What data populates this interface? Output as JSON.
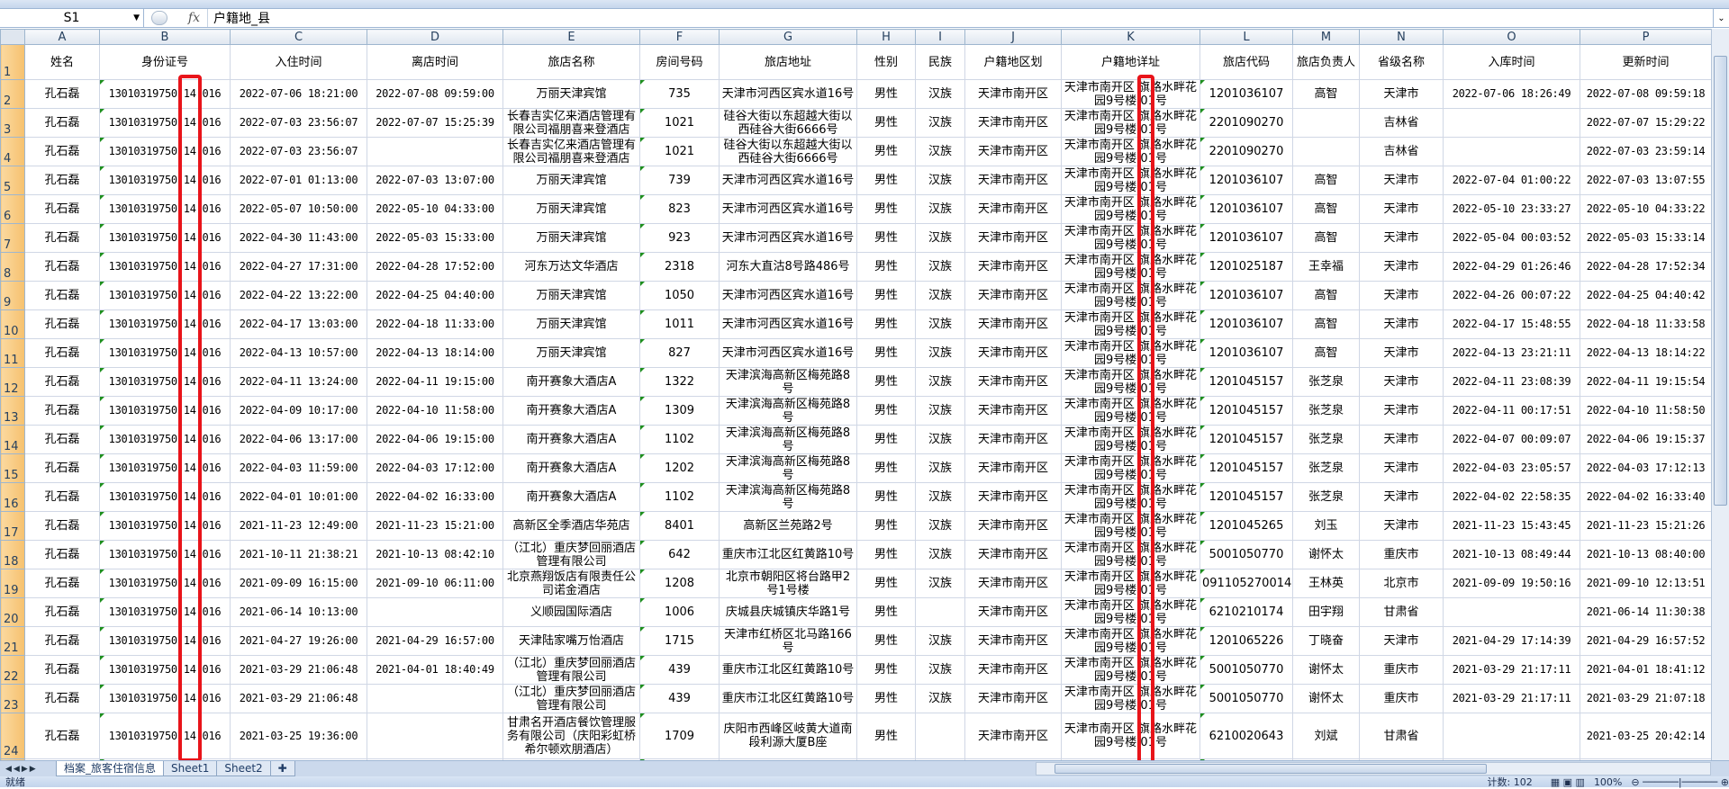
{
  "formula_bar": {
    "name_box": "S1",
    "fx_icon": "fx",
    "value": "户籍地_县"
  },
  "columns": [
    "A",
    "B",
    "C",
    "D",
    "E",
    "F",
    "G",
    "H",
    "I",
    "J",
    "K",
    "L",
    "M",
    "N",
    "O",
    "P"
  ],
  "headers": [
    "姓名",
    "身份证号",
    "入住时间",
    "离店时间",
    "旅店名称",
    "房间号码",
    "旅店地址",
    "性别",
    "民族",
    "户籍地区划",
    "户籍地详址",
    "旅店代码",
    "旅店负责人",
    "省级名称",
    "入库时间",
    "更新时间"
  ],
  "rows": [
    [
      "孔石磊",
      "13010319750 14 016",
      "2022-07-06 18:21:00",
      "2022-07-08 09:59:00",
      "万丽天津宾馆",
      "735",
      "天津市河西区宾水道16号",
      "男性",
      "汉族",
      "天津市南开区",
      "天津市南开区 旗路水畔花园9号楼 01号",
      "1201036107",
      "高智",
      "天津市",
      "2022-07-06 18:26:49",
      "2022-07-08 09:59:18"
    ],
    [
      "孔石磊",
      "13010319750 14 016",
      "2022-07-03 23:56:07",
      "2022-07-07 15:25:39",
      "长春吉实亿来酒店管理有限公司福朋喜来登酒店",
      "1021",
      "硅谷大街以东超越大街以西硅谷大街6666号",
      "男性",
      "汉族",
      "天津市南开区",
      "天津市南开区 旗路水畔花园9号楼 01号",
      "2201090270",
      "",
      "吉林省",
      "",
      "2022-07-07 15:29:22"
    ],
    [
      "孔石磊",
      "13010319750 14 016",
      "2022-07-03 23:56:07",
      "",
      "长春吉实亿来酒店管理有限公司福朋喜来登酒店",
      "1021",
      "硅谷大街以东超越大街以西硅谷大街6666号",
      "男性",
      "汉族",
      "天津市南开区",
      "天津市南开区 旗路水畔花园9号楼 01号",
      "2201090270",
      "",
      "吉林省",
      "",
      "2022-07-03 23:59:14"
    ],
    [
      "孔石磊",
      "13010319750 14 016",
      "2022-07-01 01:13:00",
      "2022-07-03 13:07:00",
      "万丽天津宾馆",
      "739",
      "天津市河西区宾水道16号",
      "男性",
      "汉族",
      "天津市南开区",
      "天津市南开区 旗路水畔花园9号楼 01号",
      "1201036107",
      "高智",
      "天津市",
      "2022-07-04 01:00:22",
      "2022-07-03 13:07:55"
    ],
    [
      "孔石磊",
      "13010319750 14 016",
      "2022-05-07 10:50:00",
      "2022-05-10 04:33:00",
      "万丽天津宾馆",
      "823",
      "天津市河西区宾水道16号",
      "男性",
      "汉族",
      "天津市南开区",
      "天津市南开区 旗路水畔花园9号楼 01号",
      "1201036107",
      "高智",
      "天津市",
      "2022-05-10 23:33:27",
      "2022-05-10 04:33:22"
    ],
    [
      "孔石磊",
      "13010319750 14 016",
      "2022-04-30 11:43:00",
      "2022-05-03 15:33:00",
      "万丽天津宾馆",
      "923",
      "天津市河西区宾水道16号",
      "男性",
      "汉族",
      "天津市南开区",
      "天津市南开区 旗路水畔花园9号楼 01号",
      "1201036107",
      "高智",
      "天津市",
      "2022-05-04 00:03:52",
      "2022-05-03 15:33:14"
    ],
    [
      "孔石磊",
      "13010319750 14 016",
      "2022-04-27 17:31:00",
      "2022-04-28 17:52:00",
      "河东万达文华酒店",
      "2318",
      "河东大直沽8号路486号",
      "男性",
      "汉族",
      "天津市南开区",
      "天津市南开区 旗路水畔花园9号楼 01号",
      "1201025187",
      "王幸福",
      "天津市",
      "2022-04-29 01:26:46",
      "2022-04-28 17:52:34"
    ],
    [
      "孔石磊",
      "13010319750 14 016",
      "2022-04-22 13:22:00",
      "2022-04-25 04:40:00",
      "万丽天津宾馆",
      "1050",
      "天津市河西区宾水道16号",
      "男性",
      "汉族",
      "天津市南开区",
      "天津市南开区 旗路水畔花园9号楼 01号",
      "1201036107",
      "高智",
      "天津市",
      "2022-04-26 00:07:22",
      "2022-04-25 04:40:42"
    ],
    [
      "孔石磊",
      "13010319750 14 016",
      "2022-04-17 13:03:00",
      "2022-04-18 11:33:00",
      "万丽天津宾馆",
      "1011",
      "天津市河西区宾水道16号",
      "男性",
      "汉族",
      "天津市南开区",
      "天津市南开区 旗路水畔花园9号楼 01号",
      "1201036107",
      "高智",
      "天津市",
      "2022-04-17 15:48:55",
      "2022-04-18 11:33:58"
    ],
    [
      "孔石磊",
      "13010319750 14 016",
      "2022-04-13 10:57:00",
      "2022-04-13 18:14:00",
      "万丽天津宾馆",
      "827",
      "天津市河西区宾水道16号",
      "男性",
      "汉族",
      "天津市南开区",
      "天津市南开区 旗路水畔花园9号楼 01号",
      "1201036107",
      "高智",
      "天津市",
      "2022-04-13 23:21:11",
      "2022-04-13 18:14:22"
    ],
    [
      "孔石磊",
      "13010319750 14 016",
      "2022-04-11 13:24:00",
      "2022-04-11 19:15:00",
      "南开赛象大酒店A",
      "1322",
      "天津滨海高新区梅苑路8号",
      "男性",
      "汉族",
      "天津市南开区",
      "天津市南开区 旗路水畔花园9号楼 01号",
      "1201045157",
      "张芝泉",
      "天津市",
      "2022-04-11 23:08:39",
      "2022-04-11 19:15:54"
    ],
    [
      "孔石磊",
      "13010319750 14 016",
      "2022-04-09 10:17:00",
      "2022-04-10 11:58:00",
      "南开赛象大酒店A",
      "1309",
      "天津滨海高新区梅苑路8号",
      "男性",
      "汉族",
      "天津市南开区",
      "天津市南开区 旗路水畔花园9号楼 01号",
      "1201045157",
      "张芝泉",
      "天津市",
      "2022-04-11 00:17:51",
      "2022-04-10 11:58:50"
    ],
    [
      "孔石磊",
      "13010319750 14 016",
      "2022-04-06 13:17:00",
      "2022-04-06 19:15:00",
      "南开赛象大酒店A",
      "1102",
      "天津滨海高新区梅苑路8号",
      "男性",
      "汉族",
      "天津市南开区",
      "天津市南开区 旗路水畔花园9号楼 01号",
      "1201045157",
      "张芝泉",
      "天津市",
      "2022-04-07 00:09:07",
      "2022-04-06 19:15:37"
    ],
    [
      "孔石磊",
      "13010319750 14 016",
      "2022-04-03 11:59:00",
      "2022-04-03 17:12:00",
      "南开赛象大酒店A",
      "1202",
      "天津滨海高新区梅苑路8号",
      "男性",
      "汉族",
      "天津市南开区",
      "天津市南开区 旗路水畔花园9号楼 01号",
      "1201045157",
      "张芝泉",
      "天津市",
      "2022-04-03 23:05:57",
      "2022-04-03 17:12:13"
    ],
    [
      "孔石磊",
      "13010319750 14 016",
      "2022-04-01 10:01:00",
      "2022-04-02 16:33:00",
      "南开赛象大酒店A",
      "1102",
      "天津滨海高新区梅苑路8号",
      "男性",
      "汉族",
      "天津市南开区",
      "天津市南开区 旗路水畔花园9号楼 01号",
      "1201045157",
      "张芝泉",
      "天津市",
      "2022-04-02 22:58:35",
      "2022-04-02 16:33:40"
    ],
    [
      "孔石磊",
      "13010319750 14 016",
      "2021-11-23 12:49:00",
      "2021-11-23 15:21:00",
      "高新区全季酒店华苑店",
      "8401",
      "高新区兰苑路2号",
      "男性",
      "汉族",
      "天津市南开区",
      "天津市南开区 旗路水畔花园9号楼 01号",
      "1201045265",
      "刘玉",
      "天津市",
      "2021-11-23 15:43:45",
      "2021-11-23 15:21:26"
    ],
    [
      "孔石磊",
      "13010319750 14 016",
      "2021-10-11 21:38:21",
      "2021-10-13 08:42:10",
      "（江北）重庆梦回丽酒店管理有限公司",
      "642",
      "重庆市江北区红黄路10号",
      "男性",
      "汉族",
      "天津市南开区",
      "天津市南开区 旗路水畔花园9号楼 01号",
      "5001050770",
      "谢怀太",
      "重庆市",
      "2021-10-13 08:49:44",
      "2021-10-13 08:40:00"
    ],
    [
      "孔石磊",
      "13010319750 14 016",
      "2021-09-09 16:15:00",
      "2021-09-10 06:11:00",
      "北京燕翔饭店有限责任公司诺金酒店",
      "1208",
      "北京市朝阳区将台路甲2号1号楼",
      "男性",
      "汉族",
      "天津市南开区",
      "天津市南开区 旗路水畔花园9号楼 01号",
      "091105270014",
      "王林英",
      "北京市",
      "2021-09-09 19:50:16",
      "2021-09-10 12:13:51"
    ],
    [
      "孔石磊",
      "13010319750 14 016",
      "2021-06-14 10:13:00",
      "",
      "义顺园国际酒店",
      "1006",
      "庆城县庆城镇庆华路1号",
      "男性",
      "",
      "天津市南开区",
      "天津市南开区 旗路水畔花园9号楼 01号",
      "6210210174",
      "田宇翔",
      "甘肃省",
      "",
      "2021-06-14 11:30:38"
    ],
    [
      "孔石磊",
      "13010319750 14 016",
      "2021-04-27 19:26:00",
      "2021-04-29 16:57:00",
      "天津陆家嘴万怡酒店",
      "1715",
      "天津市红桥区北马路166号",
      "男性",
      "汉族",
      "天津市南开区",
      "天津市南开区 旗路水畔花园9号楼 01号",
      "1201065226",
      "丁晓奋",
      "天津市",
      "2021-04-29 17:14:39",
      "2021-04-29 16:57:52"
    ],
    [
      "孔石磊",
      "13010319750 14 016",
      "2021-03-29 21:06:48",
      "2021-04-01 18:40:49",
      "（江北）重庆梦回丽酒店管理有限公司",
      "439",
      "重庆市江北区红黄路10号",
      "男性",
      "汉族",
      "天津市南开区",
      "天津市南开区 旗路水畔花园9号楼 01号",
      "5001050770",
      "谢怀太",
      "重庆市",
      "2021-03-29 21:17:11",
      "2021-04-01 18:41:12"
    ],
    [
      "孔石磊",
      "13010319750 14 016",
      "2021-03-29 21:06:48",
      "",
      "（江北）重庆梦回丽酒店管理有限公司",
      "439",
      "重庆市江北区红黄路10号",
      "男性",
      "汉族",
      "天津市南开区",
      "天津市南开区 旗路水畔花园9号楼 01号",
      "5001050770",
      "谢怀太",
      "重庆市",
      "2021-03-29 21:17:11",
      "2021-03-29 21:07:18"
    ],
    [
      "孔石磊",
      "13010319750 14 016",
      "2021-03-25 19:36:00",
      "",
      "甘肃名开酒店餐饮管理服务有限公司（庆阳彩虹桥希尔顿欢朋酒店）",
      "1709",
      "庆阳市西峰区岐黄大道南段利源大厦B座",
      "男性",
      "",
      "天津市南开区",
      "天津市南开区 旗路水畔花园9号楼 01号",
      "6210020643",
      "刘斌",
      "甘肃省",
      "",
      "2021-03-25 20:42:14"
    ]
  ],
  "sheet_tabs": [
    "档案_旅客住宿信息",
    "Sheet1",
    "Sheet2"
  ],
  "status": {
    "ready": "就绪",
    "count": "计数: 102",
    "zoom": "100%"
  },
  "colors": {
    "highlight": "#e8141a",
    "row_header": "#f6c16e",
    "error_marker": "#1d8f1d"
  }
}
